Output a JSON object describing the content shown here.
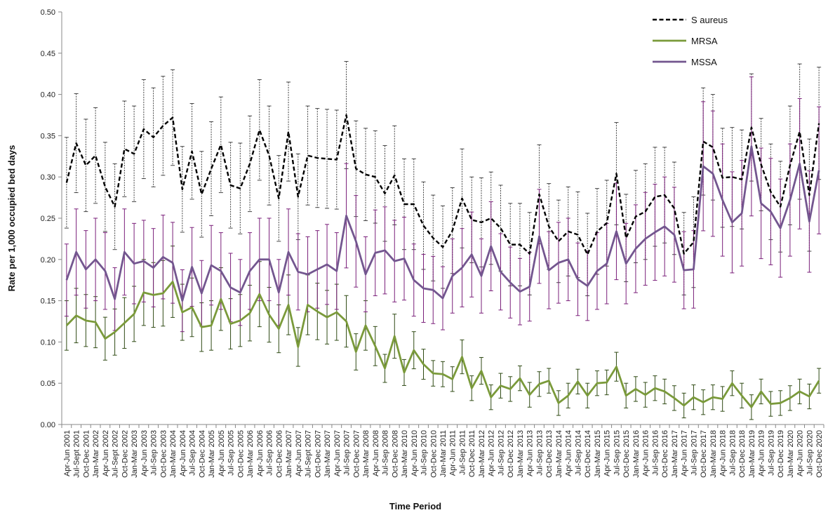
{
  "chart_data": {
    "type": "line",
    "xlabel": "Time Period",
    "ylabel": "Rate per 1,000 occupied bed days",
    "ylim": [
      0,
      0.5
    ],
    "yticks": [
      "0.00",
      "0.05",
      "0.10",
      "0.15",
      "0.20",
      "0.25",
      "0.30",
      "0.35",
      "0.40",
      "0.45",
      "0.50"
    ],
    "grid": false,
    "legend_position": "top-right",
    "categories": [
      "Apr-Jun 2001",
      "Jul-Sept 2001",
      "Oct-Dec 2001",
      "Jan-Mar 2002",
      "Apr-Jun 2002",
      "Jul-Sept 2002",
      "Oct-Dec 2002",
      "Jan-Mar 2003",
      "Apr-Jun 2003",
      "Jul-Sep 2003",
      "Oct-Dec 2003",
      "Jan-Mar 2004",
      "Apr-Jun 2004",
      "Jul-Sep 2004",
      "Oct-Dec 2004",
      "Jan-Mar 2005",
      "Apr-Jun 2005",
      "Jul-Sep 2005",
      "Oct-Dec 2005",
      "Jan-Mar 2006",
      "Apr-Jun 2006",
      "Jul-Sep 2006",
      "Oct-Dec 2006",
      "Jan-Mar 2007",
      "Apr-Jun 2007",
      "Jul-Sept 2007",
      "Oct-Dec 2007",
      "Jan-Mar 2007",
      "Apr-Jun 2007",
      "Jul-Sep 2007",
      "Oct-Dec 2007",
      "Jan-Mar 2008",
      "Apr-Jun 2008",
      "Jul-Sep 2008",
      "Oct-Dec 2008",
      "Jan-Mar 2010",
      "Apr-Jun 2010",
      "Jul-Sep 2010",
      "Oct-Dec 2010",
      "Jan-Mar 2011",
      "Apr-Jun 2011",
      "Jul-Sep 2011",
      "Oct-Dec 2011",
      "Jan-Mar 2012",
      "Apr-Jun 2012",
      "Jul-Sep 2012",
      "Oct-Dec 2012",
      "Jan-Mar 2013",
      "Apr-Jun 2013",
      "Jul-Sep 2013",
      "Oct-Dec 2013",
      "Jan-Mar 2014",
      "Apr-Jun 2014",
      "Jul-Sep 2014",
      "Oct-Dec 2014",
      "Jan-Mar 2015",
      "Apr-Jun 2015",
      "Jul-Sep 2015",
      "Oct-Dec 2015",
      "Jan-Mar 2016",
      "Apr-Jun 2016",
      "Jul-Sep 2016",
      "Oct-Dec 2016",
      "Jan-Mar 2017",
      "Apr-Jun 2017",
      "Jul-Sep 2017",
      "Oct-Dec 2017",
      "Jan-Mar 2018",
      "Apr-Jun 2018",
      "Jul-Sep 2018",
      "Oct-Dec 2018",
      "Jan-Mar 2019",
      "Apr-Jun 2019",
      "Jul-Sep 2019",
      "Oct-Dec 2019",
      "Jan-Mar 2020",
      "Apr-Jun 2020",
      "Jul-Sep 2020",
      "Oct-Dec 2020"
    ],
    "series": [
      {
        "name": "S aureus",
        "color": "#000000",
        "dash": true,
        "errcolor": "#444444",
        "values": [
          0.293,
          0.341,
          0.314,
          0.326,
          0.288,
          0.264,
          0.334,
          0.328,
          0.358,
          0.348,
          0.362,
          0.372,
          0.285,
          0.331,
          0.279,
          0.31,
          0.339,
          0.29,
          0.286,
          0.316,
          0.357,
          0.326,
          0.274,
          0.355,
          0.276,
          0.326,
          0.323,
          0.322,
          0.321,
          0.375,
          0.31,
          0.303,
          0.3,
          0.28,
          0.302,
          0.267,
          0.267,
          0.241,
          0.226,
          0.215,
          0.235,
          0.274,
          0.248,
          0.245,
          0.25,
          0.238,
          0.218,
          0.218,
          0.207,
          0.279,
          0.24,
          0.222,
          0.234,
          0.23,
          0.206,
          0.234,
          0.244,
          0.304,
          0.226,
          0.252,
          0.258,
          0.276,
          0.278,
          0.262,
          0.207,
          0.221,
          0.343,
          0.336,
          0.299,
          0.3,
          0.297,
          0.36,
          0.315,
          0.282,
          0.264,
          0.314,
          0.355,
          0.278,
          0.365
        ],
        "err": [
          0.055,
          0.06,
          0.056,
          0.058,
          0.054,
          0.052,
          0.058,
          0.058,
          0.06,
          0.06,
          0.06,
          0.058,
          0.052,
          0.058,
          0.052,
          0.057,
          0.058,
          0.052,
          0.055,
          0.058,
          0.061,
          0.06,
          0.052,
          0.06,
          0.052,
          0.06,
          0.06,
          0.06,
          0.06,
          0.065,
          0.058,
          0.056,
          0.056,
          0.058,
          0.06,
          0.055,
          0.055,
          0.053,
          0.052,
          0.05,
          0.052,
          0.06,
          0.052,
          0.054,
          0.056,
          0.052,
          0.05,
          0.05,
          0.05,
          0.06,
          0.052,
          0.05,
          0.054,
          0.052,
          0.05,
          0.052,
          0.052,
          0.062,
          0.053,
          0.056,
          0.058,
          0.06,
          0.058,
          0.056,
          0.05,
          0.055,
          0.065,
          0.064,
          0.06,
          0.06,
          0.06,
          0.065,
          0.056,
          0.058,
          0.055,
          0.072,
          0.082,
          0.068,
          0.068
        ]
      },
      {
        "name": "MRSA",
        "color": "#7a9a3a",
        "dash": false,
        "errcolor": "#2f4a14",
        "values": [
          0.12,
          0.132,
          0.126,
          0.124,
          0.104,
          0.112,
          0.123,
          0.134,
          0.16,
          0.157,
          0.159,
          0.173,
          0.136,
          0.142,
          0.118,
          0.12,
          0.152,
          0.122,
          0.126,
          0.135,
          0.158,
          0.133,
          0.116,
          0.145,
          0.094,
          0.145,
          0.137,
          0.13,
          0.136,
          0.125,
          0.088,
          0.12,
          0.095,
          0.068,
          0.107,
          0.063,
          0.09,
          0.073,
          0.062,
          0.061,
          0.055,
          0.082,
          0.044,
          0.065,
          0.033,
          0.047,
          0.043,
          0.056,
          0.036,
          0.049,
          0.053,
          0.026,
          0.035,
          0.052,
          0.035,
          0.05,
          0.051,
          0.07,
          0.035,
          0.043,
          0.036,
          0.044,
          0.04,
          0.032,
          0.023,
          0.033,
          0.027,
          0.033,
          0.031,
          0.05,
          0.035,
          0.021,
          0.04,
          0.025,
          0.026,
          0.032,
          0.04,
          0.034,
          0.053
        ]
      },
      {
        "name": "MSSA",
        "color": "#73568f",
        "dash": false,
        "errcolor": "#7a1f7a",
        "values": [
          0.175,
          0.209,
          0.188,
          0.2,
          0.186,
          0.152,
          0.209,
          0.195,
          0.198,
          0.19,
          0.203,
          0.196,
          0.15,
          0.191,
          0.159,
          0.193,
          0.186,
          0.166,
          0.16,
          0.186,
          0.2,
          0.2,
          0.16,
          0.209,
          0.185,
          0.182,
          0.188,
          0.194,
          0.186,
          0.253,
          0.222,
          0.182,
          0.208,
          0.211,
          0.198,
          0.201,
          0.175,
          0.165,
          0.163,
          0.153,
          0.18,
          0.19,
          0.206,
          0.18,
          0.216,
          0.185,
          0.172,
          0.161,
          0.167,
          0.228,
          0.187,
          0.196,
          0.2,
          0.176,
          0.168,
          0.186,
          0.195,
          0.234,
          0.195,
          0.213,
          0.225,
          0.233,
          0.24,
          0.23,
          0.187,
          0.188,
          0.313,
          0.304,
          0.272,
          0.245,
          0.256,
          0.337,
          0.268,
          0.258,
          0.238,
          0.272,
          0.316,
          0.246,
          0.308
        ]
      }
    ]
  }
}
